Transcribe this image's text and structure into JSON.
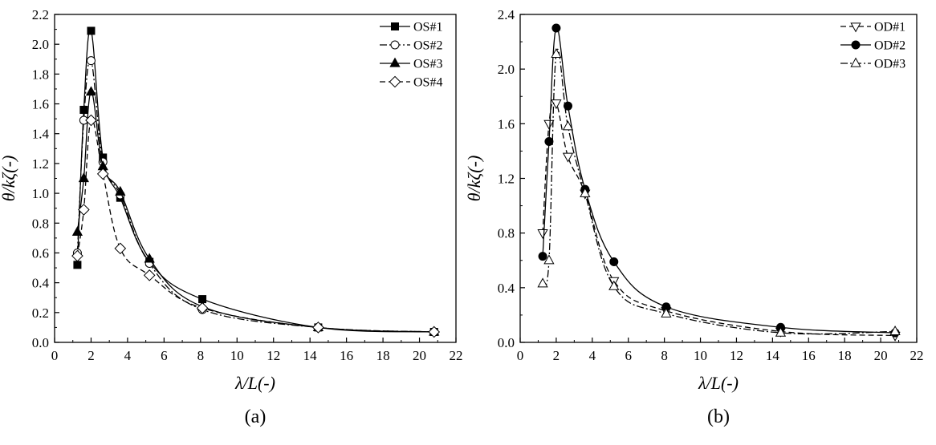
{
  "chart_data": [
    {
      "type": "line",
      "panel_label": "(a)",
      "xlabel": "λ/L(-)",
      "ylabel": "θ/kζ(-)",
      "xlim": [
        0,
        22
      ],
      "ylim": [
        0,
        2.2
      ],
      "xticks": [
        0,
        2,
        4,
        6,
        8,
        10,
        12,
        14,
        16,
        18,
        20,
        22
      ],
      "yticks": [
        0.0,
        0.2,
        0.4,
        0.6,
        0.8,
        1.0,
        1.2,
        1.4,
        1.6,
        1.8,
        2.0,
        2.2
      ],
      "ytick_decimals": 1,
      "legend_position": "top-right",
      "grid": false,
      "series": [
        {
          "name": "OS#1",
          "marker": "square",
          "fill": "filled",
          "dash": "solid",
          "x": [
            1.25,
            1.6,
            2.0,
            2.65,
            3.6,
            5.2,
            8.1,
            14.45,
            20.8
          ],
          "y": [
            0.52,
            1.56,
            2.09,
            1.24,
            0.97,
            0.54,
            0.29,
            0.1,
            0.07
          ]
        },
        {
          "name": "OS#2",
          "marker": "circle",
          "fill": "open",
          "dash": "dashdot",
          "x": [
            1.25,
            1.6,
            2.0,
            2.65,
            3.6,
            5.2,
            8.1,
            14.45,
            20.8
          ],
          "y": [
            0.6,
            1.49,
            1.89,
            1.21,
            0.99,
            0.53,
            0.22,
            0.1,
            0.07
          ]
        },
        {
          "name": "OS#3",
          "marker": "triangle-up",
          "fill": "filled",
          "dash": "solid",
          "x": [
            1.25,
            1.6,
            2.0,
            2.65,
            3.6,
            5.2,
            8.1,
            14.45,
            20.8
          ],
          "y": [
            0.74,
            1.1,
            1.68,
            1.18,
            1.01,
            0.56,
            0.24,
            0.1,
            0.07
          ]
        },
        {
          "name": "OS#4",
          "marker": "diamond",
          "fill": "open",
          "dash": "dashed",
          "x": [
            1.25,
            1.6,
            2.0,
            2.65,
            3.6,
            5.2,
            8.1,
            14.45,
            20.8
          ],
          "y": [
            0.58,
            0.89,
            1.49,
            1.13,
            0.63,
            0.45,
            0.23,
            0.1,
            0.07
          ]
        }
      ]
    },
    {
      "type": "line",
      "panel_label": "(b)",
      "xlabel": "λ/L(-)",
      "ylabel": "θ/kζ(-)",
      "xlim": [
        0,
        22
      ],
      "ylim": [
        0,
        2.4
      ],
      "xticks": [
        0,
        2,
        4,
        6,
        8,
        10,
        12,
        14,
        16,
        18,
        20,
        22
      ],
      "yticks": [
        0.0,
        0.4,
        0.8,
        1.2,
        1.6,
        2.0,
        2.4
      ],
      "ytick_decimals": 1,
      "legend_position": "top-right",
      "grid": false,
      "series": [
        {
          "name": "OD#1",
          "marker": "triangle-down",
          "fill": "open",
          "dash": "dashed",
          "x": [
            1.25,
            1.6,
            2.0,
            2.65,
            3.6,
            5.2,
            8.1,
            14.45,
            20.8
          ],
          "y": [
            0.8,
            1.6,
            1.75,
            1.36,
            1.09,
            0.45,
            0.23,
            0.08,
            0.05
          ]
        },
        {
          "name": "OD#2",
          "marker": "circle",
          "fill": "filled",
          "dash": "solid",
          "x": [
            1.25,
            1.6,
            2.0,
            2.65,
            3.6,
            5.2,
            8.1,
            14.45,
            20.8
          ],
          "y": [
            0.63,
            1.47,
            2.3,
            1.73,
            1.12,
            0.59,
            0.26,
            0.11,
            0.07
          ]
        },
        {
          "name": "OD#3",
          "marker": "triangle-up",
          "fill": "open",
          "dash": "dashdot",
          "x": [
            1.25,
            1.6,
            2.0,
            2.65,
            3.6,
            5.2,
            8.1,
            14.45,
            20.8
          ],
          "y": [
            0.43,
            0.6,
            2.11,
            1.58,
            1.09,
            0.41,
            0.21,
            0.07,
            0.08
          ]
        }
      ]
    }
  ]
}
